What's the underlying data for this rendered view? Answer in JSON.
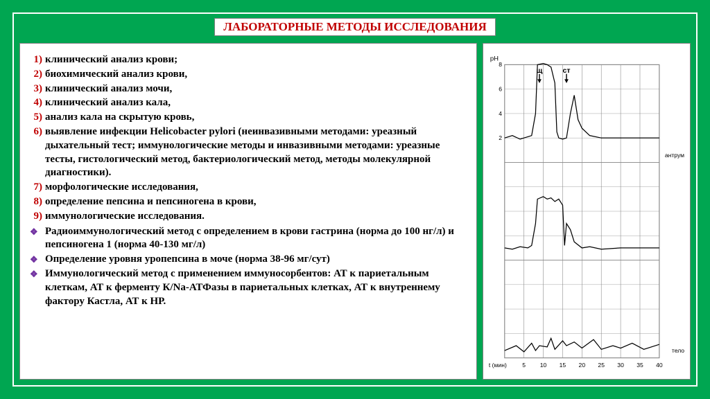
{
  "title": "ЛАБОРАТОРНЫЕ МЕТОДЫ ИССЛЕДОВАНИЯ",
  "numbered": [
    "клинический анализ крови;",
    "биохимический анализ крови,",
    "клинический анализ мочи,",
    "клинический анализ кала,",
    "анализ кала на скрытую кровь,",
    "выявление инфекции Helicobacter pylori (неинвазивными методами: уреазный дыхательный тест; иммунологические методы и инвазивными методами: уреазные тесты, гистологический метод, бактериологический метод, методы молекулярной диагностики).",
    "морфологические исследования,",
    "определение пепсина и пепсиногена в крови,",
    "иммунологические исследования."
  ],
  "bulleted": [
    "Радиоиммунологический метод с определением в крови гастрина (норма до 100 нг/л) и пепсиногена 1 (норма 40-130 мг/л)",
    "Определение уровня уропепсина в моче (норма 38-96 мг/сут)",
    "Иммунологический метод с применением иммуносорбентов: АТ к париетальным клеткам, АТ к ферменту К/Na-АТФазы в париетальных клетках, АТ к внутреннему фактору Кастла, АТ к НР."
  ],
  "chart": {
    "type": "line",
    "background_color": "#ffffff",
    "grid_color": "#888888",
    "line_color": "#000000",
    "text_color": "#000000",
    "y_label": "pH",
    "x_label_left": "t (мин)",
    "x_ticks": [
      "5",
      "10",
      "15",
      "20",
      "25",
      "30",
      "35",
      "40"
    ],
    "y_ticks": [
      "2",
      "4",
      "6",
      "8"
    ],
    "col_labels": [
      "щ",
      "ст"
    ],
    "right_labels": [
      "антрум",
      "тело"
    ],
    "series": [
      {
        "name": "antrum",
        "points": [
          [
            0,
            2.0
          ],
          [
            2,
            2.2
          ],
          [
            4,
            1.9
          ],
          [
            6,
            2.1
          ],
          [
            7,
            2.2
          ],
          [
            8,
            4.0
          ],
          [
            8.5,
            8.0
          ],
          [
            10,
            8.1
          ],
          [
            11,
            8.0
          ],
          [
            12,
            7.8
          ],
          [
            13,
            6.5
          ],
          [
            13.5,
            2.5
          ],
          [
            14,
            2.0
          ],
          [
            15,
            1.9
          ],
          [
            16,
            2.0
          ],
          [
            17,
            4.0
          ],
          [
            18,
            5.5
          ],
          [
            19,
            3.5
          ],
          [
            20,
            2.8
          ],
          [
            22,
            2.2
          ],
          [
            25,
            2.0
          ],
          [
            30,
            2.0
          ],
          [
            35,
            2.0
          ],
          [
            40,
            2.0
          ]
        ]
      },
      {
        "name": "body",
        "points": [
          [
            0,
            1.0
          ],
          [
            2,
            0.9
          ],
          [
            4,
            1.1
          ],
          [
            6,
            1.0
          ],
          [
            7,
            1.2
          ],
          [
            8,
            3.0
          ],
          [
            8.5,
            5.0
          ],
          [
            10,
            5.2
          ],
          [
            11,
            5.0
          ],
          [
            12,
            5.1
          ],
          [
            13,
            4.8
          ],
          [
            14,
            5.0
          ],
          [
            15,
            4.5
          ],
          [
            15.5,
            1.2
          ],
          [
            16,
            3.0
          ],
          [
            17,
            2.5
          ],
          [
            18,
            1.5
          ],
          [
            20,
            1.0
          ],
          [
            22,
            1.1
          ],
          [
            25,
            0.9
          ],
          [
            30,
            1.0
          ],
          [
            35,
            1.0
          ],
          [
            40,
            1.0
          ]
        ]
      },
      {
        "name": "bottom",
        "points": [
          [
            0,
            0.6
          ],
          [
            3,
            1.0
          ],
          [
            5,
            0.5
          ],
          [
            7,
            1.2
          ],
          [
            8,
            0.6
          ],
          [
            9,
            1.0
          ],
          [
            11,
            0.9
          ],
          [
            12,
            1.6
          ],
          [
            13,
            0.7
          ],
          [
            15,
            1.4
          ],
          [
            16,
            1.0
          ],
          [
            18,
            1.3
          ],
          [
            20,
            0.8
          ],
          [
            23,
            1.5
          ],
          [
            25,
            0.7
          ],
          [
            28,
            1.0
          ],
          [
            30,
            0.8
          ],
          [
            33,
            1.2
          ],
          [
            36,
            0.7
          ],
          [
            40,
            1.1
          ]
        ]
      }
    ]
  },
  "colors": {
    "page_bg": "#00a651",
    "panel_bg": "#ffffff",
    "frame_border": "#ffffff",
    "panel_border": "#808080",
    "title_text": "#c00000",
    "number_text": "#c00000",
    "bullet_marker": "#7030a0",
    "body_text": "#000000"
  }
}
